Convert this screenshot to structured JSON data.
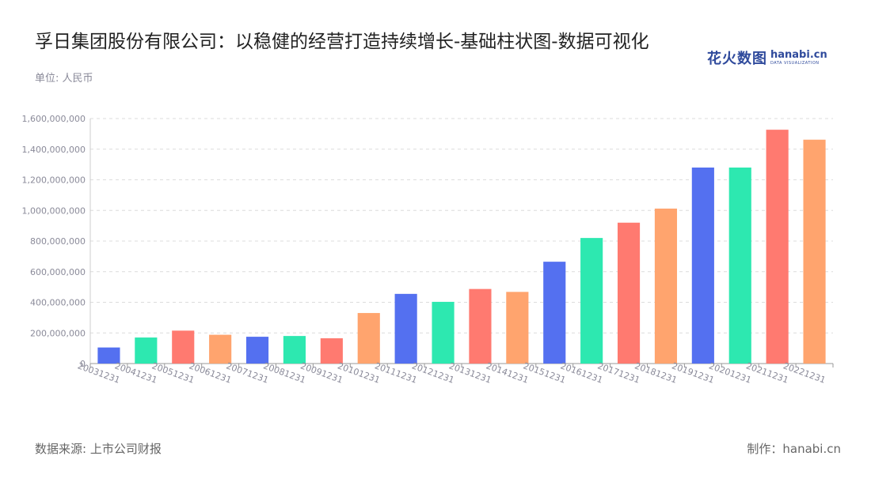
{
  "header": {
    "title": "孚日集团股份有限公司：以稳健的经营打造持续增长-基础柱状图-数据可视化",
    "unit": "单位: 人民币"
  },
  "logo": {
    "cn": "花火数图",
    "en": "hanabi.cn",
    "en_sub": "DATA VISUALIZATION"
  },
  "footer": {
    "source": "数据来源: 上市公司财报",
    "credit": "制作：hanabi.cn"
  },
  "chart_data": {
    "type": "bar",
    "categories": [
      "20031231",
      "20041231",
      "20051231",
      "20061231",
      "20071231",
      "20081231",
      "20091231",
      "20101231",
      "20111231",
      "20121231",
      "20131231",
      "20141231",
      "20151231",
      "20161231",
      "20171231",
      "20181231",
      "20191231",
      "20201231",
      "20211231",
      "20221231"
    ],
    "values": [
      105000000,
      170000000,
      215000000,
      188000000,
      175000000,
      180000000,
      165000000,
      330000000,
      455000000,
      403000000,
      487000000,
      468000000,
      665000000,
      820000000,
      920000000,
      1012000000,
      1280000000,
      1280000000,
      1527000000,
      1462000000
    ],
    "yticks": [
      "0",
      "200,000,000",
      "400,000,000",
      "600,000,000",
      "800,000,000",
      "1,000,000,000",
      "1,200,000,000",
      "1,400,000,000",
      "1,600,000,000"
    ],
    "ylim": [
      0,
      1600000000
    ],
    "grid": true,
    "colors": [
      "#5470f0",
      "#2de8b0",
      "#ff7a70",
      "#ffa46e"
    ]
  }
}
